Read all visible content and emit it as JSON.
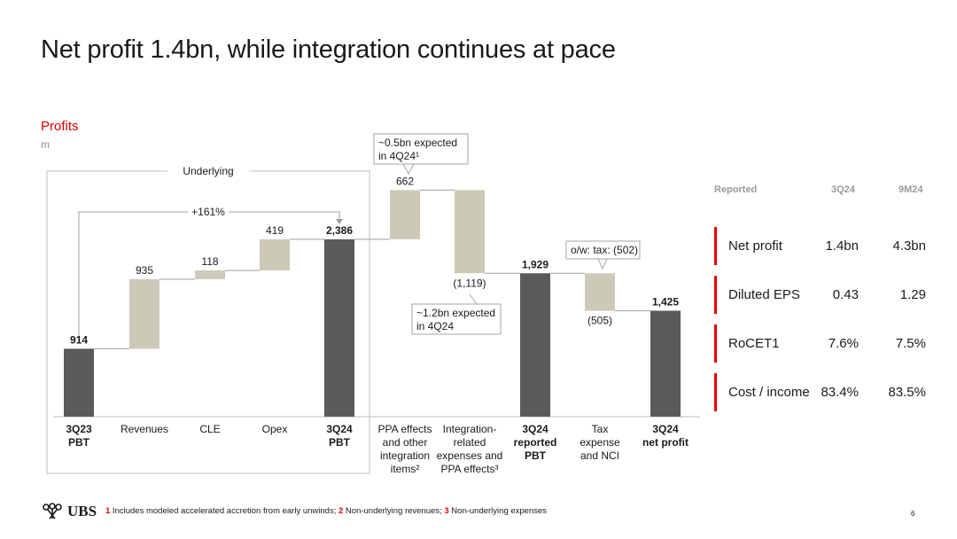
{
  "page": {
    "title": "Net profit 1.4bn, while integration continues at pace",
    "section_label": "Profits",
    "unit_label": "m",
    "page_number": "6"
  },
  "chart_data": {
    "type": "waterfall",
    "title": "Profits",
    "unit": "m",
    "group_label": "Underlying",
    "growth_annotation": "+161%",
    "ylim": [
      0,
      2700
    ],
    "steps": [
      {
        "label": [
          "3Q23",
          "PBT"
        ],
        "value": 914,
        "display": "914",
        "kind": "total",
        "bold": true
      },
      {
        "label": [
          "Revenues"
        ],
        "value": 935,
        "display": "935",
        "kind": "delta",
        "bold": false
      },
      {
        "label": [
          "CLE"
        ],
        "value": 118,
        "display": "118",
        "kind": "delta",
        "bold": false
      },
      {
        "label": [
          "Opex"
        ],
        "value": 419,
        "display": "419",
        "kind": "delta",
        "bold": false
      },
      {
        "label": [
          "3Q24",
          "PBT"
        ],
        "value": 2386,
        "display": "2,386",
        "kind": "total",
        "bold": true
      },
      {
        "label": [
          "PPA effects",
          "and other",
          "integration",
          "items²"
        ],
        "value": 662,
        "display": "662",
        "kind": "delta",
        "bold": false
      },
      {
        "label": [
          "Integration-",
          "related",
          "expenses and",
          "PPA effects³"
        ],
        "value": -1119,
        "display": "(1,119)",
        "kind": "delta",
        "bold": false
      },
      {
        "label": [
          "3Q24",
          "reported",
          "PBT"
        ],
        "value": 1929,
        "display": "1,929",
        "kind": "total",
        "bold": true
      },
      {
        "label": [
          "Tax",
          "expense",
          "and NCI"
        ],
        "value": -505,
        "display": "(505)",
        "kind": "delta",
        "bold": false
      },
      {
        "label": [
          "3Q24",
          "net profit"
        ],
        "value": 1425,
        "display": "1,425",
        "kind": "total",
        "bold": true
      }
    ],
    "callouts": [
      {
        "lines": [
          "~0.5bn expected",
          "in 4Q24¹"
        ],
        "step": 5
      },
      {
        "lines": [
          "~1.2bn expected",
          "in 4Q24"
        ],
        "step": 6
      },
      {
        "lines": [
          "o/w: tax: (502)"
        ],
        "step": 8
      }
    ],
    "colors": {
      "total": "#5a5a5a",
      "delta": "#ccc9b8",
      "accent": "#e60000",
      "connector": "#9e9e9e"
    }
  },
  "kpi": {
    "header": {
      "label": "Reported",
      "col1": "3Q24",
      "col2": "9M24"
    },
    "rows": [
      {
        "label": "Net profit",
        "v1": "1.4bn",
        "v2": "4.3bn"
      },
      {
        "label": "Diluted EPS",
        "v1": "0.43",
        "v2": "1.29"
      },
      {
        "label": "RoCET1",
        "v1": "7.6%",
        "v2": "7.5%"
      },
      {
        "label": "Cost / income",
        "v1": "83.4%",
        "v2": "83.5%"
      }
    ]
  },
  "footer": {
    "brand": "UBS",
    "logo_icon": "ubs-keys-icon",
    "notes": [
      {
        "num": "1",
        "text": " Includes modeled accelerated accretion from early unwinds; "
      },
      {
        "num": "2",
        "text": " Non-underlying revenues; "
      },
      {
        "num": "3",
        "text": " Non-underlying expenses"
      }
    ]
  }
}
